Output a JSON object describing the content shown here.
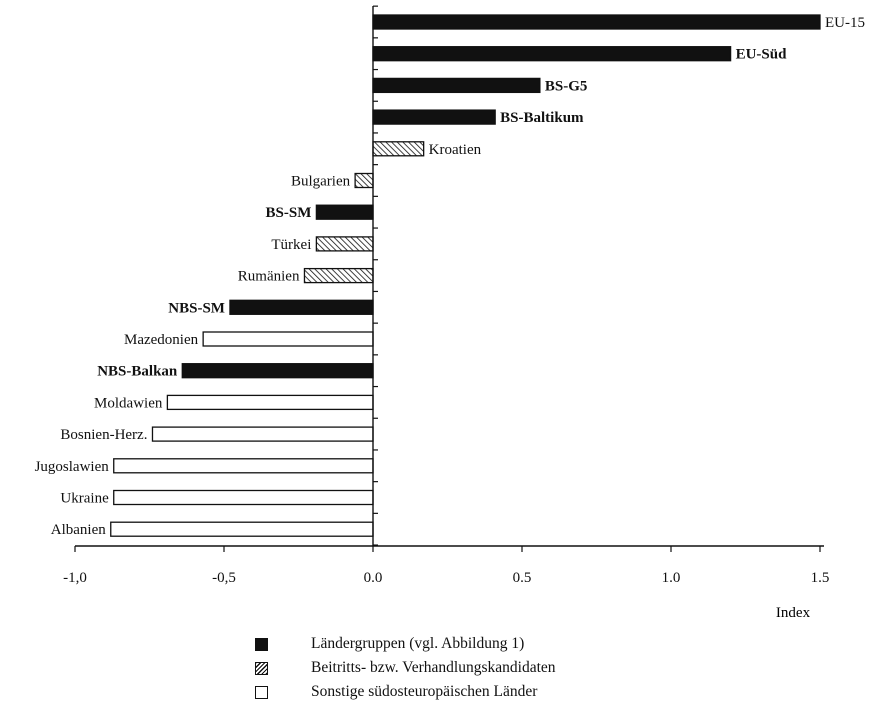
{
  "chart_data": {
    "type": "bar",
    "orientation": "horizontal",
    "xlabel": "Index",
    "xlim": [
      -1.0,
      1.5
    ],
    "ticks": [
      "-1,0",
      "-0,5",
      "0.0",
      "0.5",
      "1.0",
      "1.5"
    ],
    "tick_values": [
      -1.0,
      -0.5,
      0.0,
      0.5,
      1.0,
      1.5
    ],
    "categories": [
      "EU-15",
      "EU-Süd",
      "BS-G5",
      "BS-Baltikum",
      "Kroatien",
      "Bulgarien",
      "BS-SM",
      "Türkei",
      "Rumänien",
      "NBS-SM",
      "Mazedonien",
      "NBS-Balkan",
      "Moldawien",
      "Bosnien-Herz.",
      "Jugoslawien",
      "Ukraine",
      "Albanien"
    ],
    "values": [
      1.5,
      1.2,
      0.56,
      0.41,
      0.17,
      -0.06,
      -0.19,
      -0.19,
      -0.23,
      -0.48,
      -0.57,
      -0.64,
      -0.69,
      -0.74,
      -0.87,
      -0.87,
      -0.88
    ],
    "groups": [
      "group",
      "group",
      "group",
      "group",
      "candidate",
      "candidate",
      "group",
      "candidate",
      "candidate",
      "group",
      "other",
      "group",
      "other",
      "other",
      "other",
      "other",
      "other"
    ],
    "bold": [
      false,
      true,
      true,
      true,
      false,
      false,
      true,
      false,
      false,
      true,
      false,
      true,
      false,
      false,
      false,
      false,
      false
    ]
  },
  "legend": [
    {
      "key": "group",
      "label": "Ländergruppen (vgl. Abbildung 1)"
    },
    {
      "key": "candidate",
      "label": "Beitritts- bzw. Verhandlungskandidaten"
    },
    {
      "key": "other",
      "label": "Sonstige südosteuropäischen Länder"
    }
  ]
}
